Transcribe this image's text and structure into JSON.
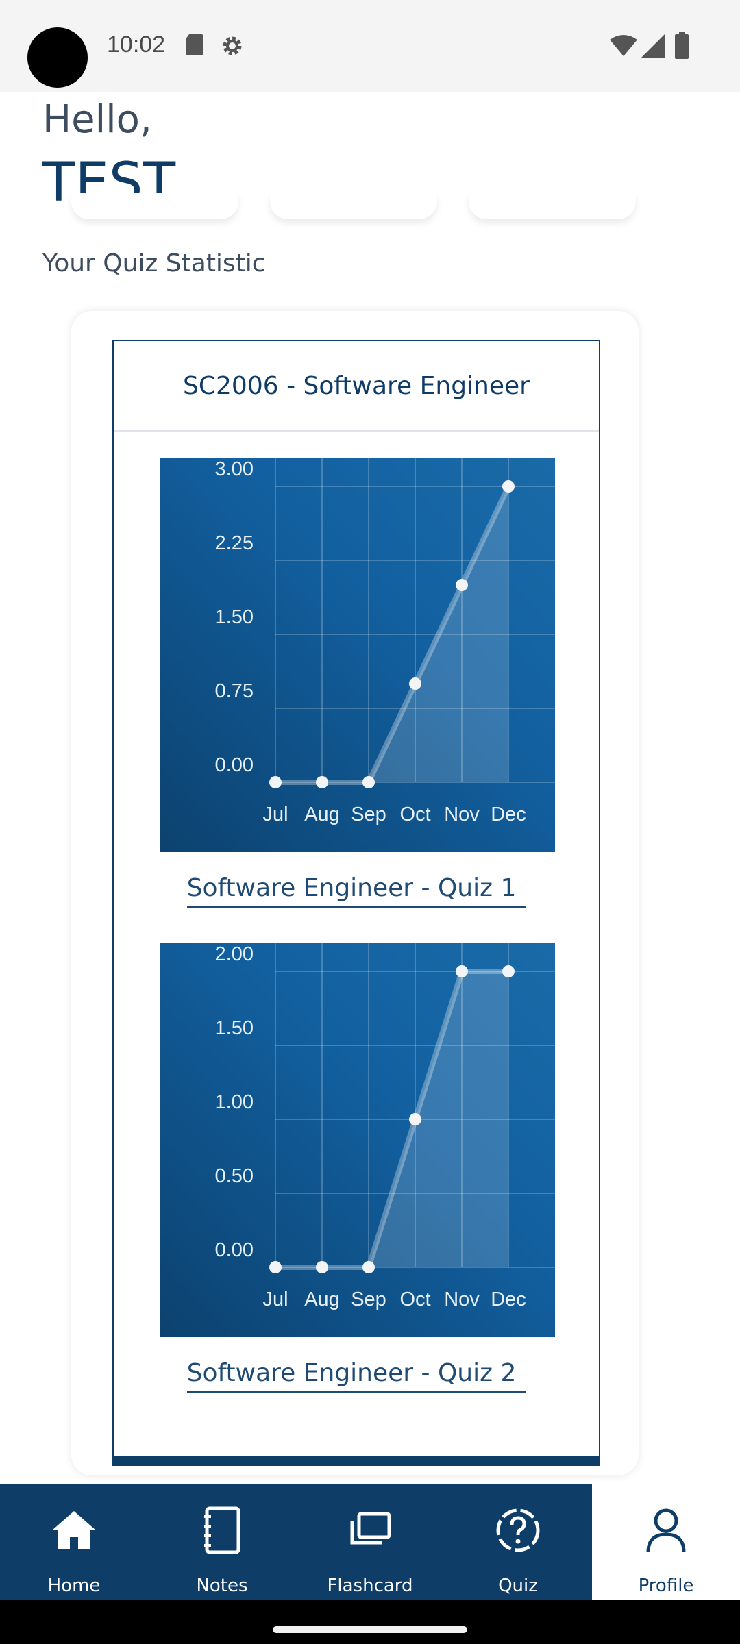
{
  "status_bar": {
    "time": "10:02"
  },
  "greeting": {
    "hello": "Hello,",
    "name": "TEST"
  },
  "section": {
    "title": "Your Quiz Statistic"
  },
  "course": {
    "title": "SC2006 - Software Engineer"
  },
  "quizzes": [
    {
      "title": "Software Engineer - Quiz 1"
    },
    {
      "title": "Software Engineer - Quiz 2"
    }
  ],
  "colors": {
    "primary": "#0e3d68",
    "chart_bg_from": "#0c426f",
    "chart_bg_to": "#1a6aa8"
  },
  "chart_data": [
    {
      "type": "area",
      "categories": [
        "Jul",
        "Aug",
        "Sep",
        "Oct",
        "Nov",
        "Dec"
      ],
      "values": [
        0,
        0,
        0,
        1,
        2,
        3
      ],
      "y_ticks": [
        "0.00",
        "0.75",
        "1.50",
        "2.25",
        "3.00"
      ],
      "ylim": [
        0,
        3
      ],
      "grid": true
    },
    {
      "type": "area",
      "categories": [
        "Jul",
        "Aug",
        "Sep",
        "Oct",
        "Nov",
        "Dec"
      ],
      "values": [
        0,
        0,
        0,
        1,
        2,
        2
      ],
      "y_ticks": [
        "0.00",
        "0.50",
        "1.00",
        "1.50",
        "2.00"
      ],
      "ylim": [
        0,
        2
      ],
      "grid": true
    }
  ],
  "nav": {
    "items": [
      {
        "label": "Home",
        "icon": "home-icon"
      },
      {
        "label": "Notes",
        "icon": "notes-icon"
      },
      {
        "label": "Flashcard",
        "icon": "flashcard-icon"
      },
      {
        "label": "Quiz",
        "icon": "quiz-icon"
      },
      {
        "label": "Profile",
        "icon": "profile-icon",
        "active": true
      }
    ]
  }
}
